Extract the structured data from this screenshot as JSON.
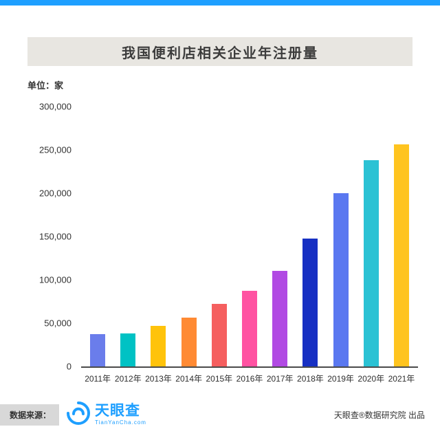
{
  "accent_color": "#1E9FFF",
  "title": "我国便利店相关企业年注册量",
  "unit_label": "单位：家",
  "footer": {
    "source_label": "数据来源：",
    "logo_name": "天眼查",
    "logo_subtext": "TianYanCha.com",
    "credit": "天眼查®数据研究院 出品"
  },
  "chart_data": {
    "type": "bar",
    "title": "我国便利店相关企业年注册量",
    "ylabel": "单位：家",
    "ylim": [
      0,
      300000
    ],
    "ytick_step": 50000,
    "grid": false,
    "legend": "none",
    "categories": [
      "2011年",
      "2012年",
      "2013年",
      "2014年",
      "2015年",
      "2016年",
      "2017年",
      "2018年",
      "2019年",
      "2020年",
      "2021年"
    ],
    "values": [
      37000,
      38000,
      47000,
      56000,
      72000,
      87000,
      110000,
      148000,
      200000,
      238000,
      256000
    ],
    "bar_colors": [
      "#6A7DEB",
      "#00C2C4",
      "#FFC30B",
      "#FF8A33",
      "#F55F5F",
      "#FF53A2",
      "#B14AE3",
      "#1730C3",
      "#5A78F0",
      "#2BC2D4",
      "#FFC41F"
    ]
  }
}
